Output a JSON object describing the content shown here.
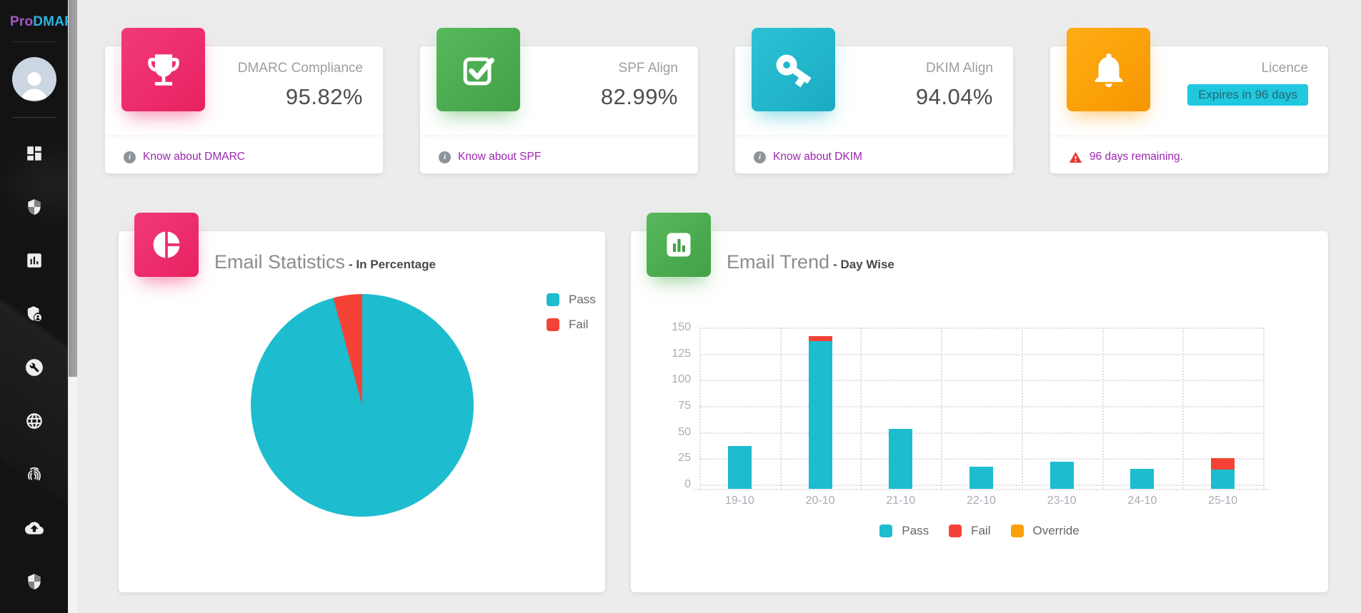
{
  "sidebar": {
    "brand": {
      "pro": "Pro",
      "dmarc": "DMARC",
      "pro_color": "#a358c6",
      "dmarc_color": "#2ab4e0"
    },
    "icons": [
      "dashboard-icon",
      "shield-icon",
      "bar-chart-icon",
      "shield-user-icon",
      "wrench-circle-icon",
      "globe-icon",
      "fingerprint-icon",
      "cloud-upload-icon",
      "shield-check-icon"
    ]
  },
  "stat_cards": [
    {
      "label": "DMARC Compliance",
      "value": "95.82%",
      "footer": "Know about DMARC",
      "icon": "trophy-icon",
      "tile_color": "#ee2f6d"
    },
    {
      "label": "SPF Align",
      "value": "82.99%",
      "footer": "Know about SPF",
      "icon": "check-square-icon",
      "tile_color": "#4caf50"
    },
    {
      "label": "DKIM Align",
      "value": "94.04%",
      "footer": "Know about DKIM",
      "icon": "key-icon",
      "tile_color": "#24b9ce"
    },
    {
      "label": "Licence",
      "badge": "Expires in 96 days",
      "footer": "96 days remaining.",
      "icon": "bell-icon",
      "tile_color": "#fba20c",
      "badge_color": "#1fc8de"
    }
  ],
  "charts": {
    "pie": {
      "title": "Email Statistics",
      "subtitle": "- In Percentage",
      "tile_icon": "pie-chart-icon"
    },
    "bar": {
      "title": "Email Trend",
      "subtitle": "- Day Wise",
      "tile_icon": "bar-chart-tile-icon"
    }
  },
  "chart_data": [
    {
      "type": "pie",
      "title": "Email Statistics - In Percentage",
      "labels": [
        "Pass",
        "Fail"
      ],
      "values": [
        95.82,
        4.18
      ],
      "colors": [
        "#1dbcce",
        "#f44336"
      ],
      "legend_position": "top-right",
      "start_angle": "top, clockwise"
    },
    {
      "type": "bar",
      "title": "Email Trend - Day Wise",
      "stacked": true,
      "categories": [
        "19-10",
        "20-10",
        "21-10",
        "22-10",
        "23-10",
        "24-10",
        "25-10"
      ],
      "series": [
        {
          "name": "Pass",
          "color": "#1dbcce",
          "values": [
            37,
            137,
            53,
            17,
            22,
            15,
            14
          ]
        },
        {
          "name": "Fail",
          "color": "#f44336",
          "values": [
            0,
            5,
            0,
            0,
            0,
            0,
            11
          ]
        },
        {
          "name": "Override",
          "color": "#f9a00a",
          "values": [
            0,
            0,
            0,
            0,
            0,
            0,
            0
          ]
        }
      ],
      "ylim": [
        0,
        150
      ],
      "yticks": [
        0,
        25,
        50,
        75,
        100,
        125,
        150
      ],
      "grid": "dotted",
      "legend_position": "bottom"
    }
  ]
}
